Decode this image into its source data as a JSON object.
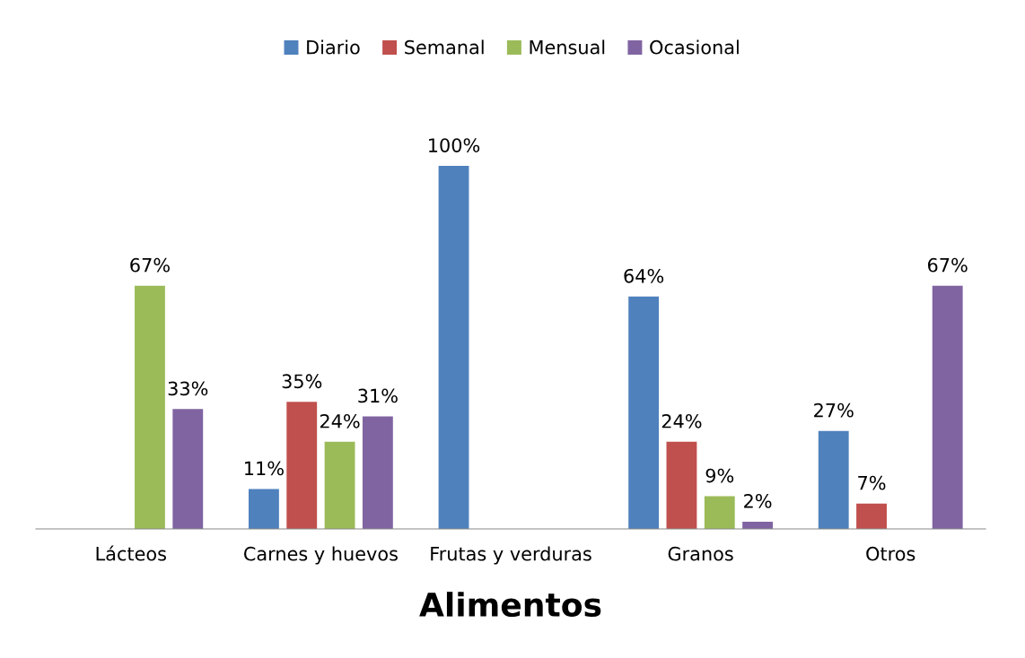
{
  "chart_data": {
    "type": "bar",
    "xlabel": "Alimentos",
    "categories": [
      "Lácteos",
      "Carnes y huevos",
      "Frutas y verduras",
      "Granos",
      "Otros"
    ],
    "series": [
      {
        "name": "Diario",
        "color": "#4f81bd",
        "values": [
          null,
          11,
          100,
          64,
          27
        ],
        "value_labels": [
          null,
          "11%",
          "100%",
          "64%",
          "27%"
        ]
      },
      {
        "name": "Semanal",
        "color": "#c0504d",
        "values": [
          null,
          35,
          null,
          24,
          7
        ],
        "value_labels": [
          null,
          "35%",
          null,
          "24%",
          "7%"
        ]
      },
      {
        "name": "Mensual",
        "color": "#9bbb59",
        "values": [
          67,
          24,
          null,
          9,
          null
        ],
        "value_labels": [
          "67%",
          "24%",
          null,
          "9%",
          null
        ]
      },
      {
        "name": "Ocasional",
        "color": "#8064a2",
        "values": [
          33,
          31,
          null,
          2,
          67
        ],
        "value_labels": [
          "33%",
          "31%",
          null,
          "2%",
          "67%"
        ]
      }
    ],
    "legend": "top",
    "grid": false
  }
}
